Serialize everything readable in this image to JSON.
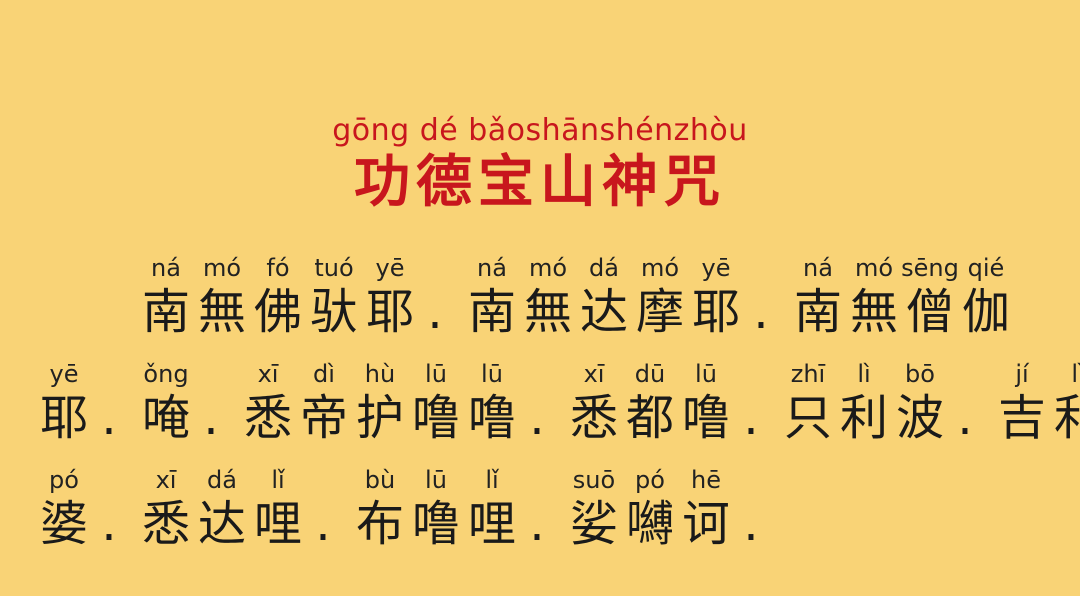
{
  "title": {
    "pinyin": "gōng dé bǎoshānshénzhòu",
    "chinese": "功德宝山神咒"
  },
  "lines": [
    {
      "units": [
        {
          "py": "ná",
          "cn": "南"
        },
        {
          "py": "mó",
          "cn": "無"
        },
        {
          "py": "fó",
          "cn": "佛"
        },
        {
          "py": "tuó",
          "cn": "驮"
        },
        {
          "py": "yē",
          "cn": "耶"
        },
        {
          "punct": "."
        },
        {
          "py": "ná",
          "cn": "南"
        },
        {
          "py": "mó",
          "cn": "無"
        },
        {
          "py": "dá",
          "cn": "达"
        },
        {
          "py": "mó",
          "cn": "摩"
        },
        {
          "py": "yē",
          "cn": "耶"
        },
        {
          "punct": "."
        },
        {
          "py": "ná",
          "cn": "南"
        },
        {
          "py": "mó",
          "cn": "無"
        },
        {
          "py": "sēng",
          "cn": "僧"
        },
        {
          "py": "qié",
          "cn": "伽"
        }
      ]
    },
    {
      "units": [
        {
          "py": "yē",
          "cn": "耶"
        },
        {
          "punct": "."
        },
        {
          "py": "ǒng",
          "cn": "唵"
        },
        {
          "punct": "."
        },
        {
          "py": "xī",
          "cn": "悉"
        },
        {
          "py": "dì",
          "cn": "帝"
        },
        {
          "py": "hù",
          "cn": "护"
        },
        {
          "py": "lū",
          "cn": "噜"
        },
        {
          "py": "lū",
          "cn": "噜"
        },
        {
          "punct": "."
        },
        {
          "py": "xī",
          "cn": "悉"
        },
        {
          "py": "dū",
          "cn": "都"
        },
        {
          "py": "lū",
          "cn": "噜"
        },
        {
          "punct": "."
        },
        {
          "py": "zhī",
          "cn": "只"
        },
        {
          "py": "lì",
          "cn": "利"
        },
        {
          "py": "bō",
          "cn": "波"
        },
        {
          "punct": "."
        },
        {
          "py": "jí",
          "cn": "吉"
        },
        {
          "py": "lì",
          "cn": "利"
        }
      ]
    },
    {
      "units": [
        {
          "py": "pó",
          "cn": "婆"
        },
        {
          "punct": "."
        },
        {
          "py": "xī",
          "cn": "悉"
        },
        {
          "py": "dá",
          "cn": "达"
        },
        {
          "py": "lǐ",
          "cn": "哩"
        },
        {
          "punct": "."
        },
        {
          "py": "bù",
          "cn": "布"
        },
        {
          "py": "lū",
          "cn": "噜"
        },
        {
          "py": "lǐ",
          "cn": "哩"
        },
        {
          "punct": "."
        },
        {
          "py": "suō",
          "cn": "娑"
        },
        {
          "py": "pó",
          "cn": "嚩"
        },
        {
          "py": "hē",
          "cn": "诃"
        },
        {
          "punct": "."
        }
      ]
    }
  ]
}
